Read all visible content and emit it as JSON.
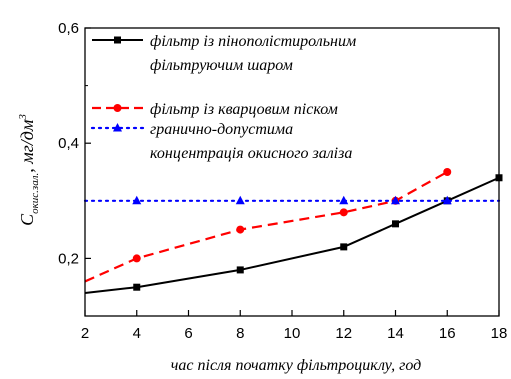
{
  "chart_data": {
    "type": "line",
    "xlabel": "час після початку фільтроциклу, год",
    "ylabel": {
      "symbol": "C",
      "subscript": "окис.зал.",
      "unit": ", мг/дм",
      "unit_power": "3"
    },
    "xlim": [
      2,
      18
    ],
    "ylim": [
      0.1,
      0.6
    ],
    "xticks": [
      2,
      4,
      6,
      8,
      10,
      12,
      14,
      16,
      18
    ],
    "yticks": [
      0.2,
      0.4,
      0.6
    ],
    "ytick_labels": [
      "0,2",
      "0,4",
      "0,6"
    ],
    "grid": false,
    "legend_position": "top",
    "series": [
      {
        "legend": [
          "фільтр із пінополістирольним",
          "фільтруючим шаром"
        ],
        "color": "#000000",
        "line_style": "solid",
        "marker": "square",
        "x": [
          2,
          4,
          8,
          12,
          14,
          16,
          18
        ],
        "y": [
          0.14,
          0.15,
          0.18,
          0.22,
          0.26,
          0.3,
          0.34
        ],
        "markers_at": [
          4,
          8,
          12,
          14,
          16,
          18
        ]
      },
      {
        "legend": [
          "фільтр із кварцовим піском"
        ],
        "color": "#ff0000",
        "line_style": "dashed",
        "marker": "circle",
        "x": [
          2,
          4,
          8,
          12,
          14,
          16
        ],
        "y": [
          0.16,
          0.2,
          0.25,
          0.28,
          0.3,
          0.35
        ],
        "markers_at": [
          4,
          8,
          12,
          14,
          16
        ]
      },
      {
        "legend": [
          "гранично-допустима",
          "концентрація окисного заліза"
        ],
        "color": "#0000ff",
        "line_style": "dotted",
        "marker": "triangle",
        "x": [
          2,
          4,
          8,
          12,
          14,
          16,
          18
        ],
        "y": [
          0.3,
          0.3,
          0.3,
          0.3,
          0.3,
          0.3,
          0.3
        ],
        "markers_at": [
          4,
          8,
          12,
          14,
          16
        ]
      }
    ]
  }
}
